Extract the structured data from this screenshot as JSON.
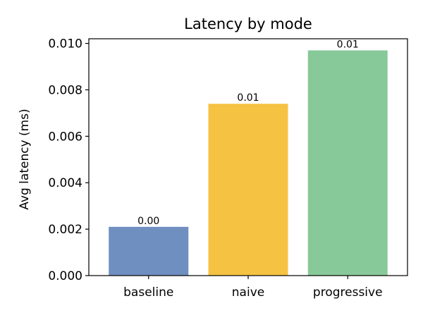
{
  "chart_data": {
    "type": "bar",
    "title": "Latency by mode",
    "xlabel": "",
    "ylabel": "Avg latency (ms)",
    "categories": [
      "baseline",
      "naive",
      "progressive"
    ],
    "values": [
      0.0021,
      0.0074,
      0.0097
    ],
    "data_labels": [
      "0.00",
      "0.01",
      "0.01"
    ],
    "colors": [
      "#6F8FC0",
      "#F5C242",
      "#88C999"
    ],
    "ylim": [
      0,
      0.0102
    ],
    "yticks": [
      0,
      0.002,
      0.004,
      0.006,
      0.008,
      0.01
    ],
    "ytick_labels": [
      "0.000",
      "0.002",
      "0.004",
      "0.006",
      "0.008",
      "0.010"
    ],
    "grid": false,
    "legend": "none"
  }
}
